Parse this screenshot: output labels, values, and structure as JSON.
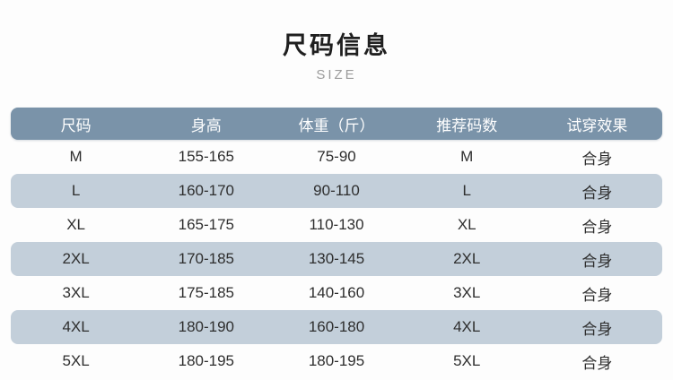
{
  "page": {
    "title": "尺码信息",
    "subtitle": "SIZE"
  },
  "chart_data": {
    "type": "table",
    "title": "尺码信息",
    "subtitle": "SIZE",
    "columns": [
      "尺码",
      "身高",
      "体重（斤）",
      "推荐码数",
      "试穿效果"
    ],
    "rows": [
      [
        "M",
        "155-165",
        "75-90",
        "M",
        "合身"
      ],
      [
        "L",
        "160-170",
        "90-110",
        "L",
        "合身"
      ],
      [
        "XL",
        "165-175",
        "110-130",
        "XL",
        "合身"
      ],
      [
        "2XL",
        "170-185",
        "130-145",
        "2XL",
        "合身"
      ],
      [
        "3XL",
        "175-185",
        "140-160",
        "3XL",
        "合身"
      ],
      [
        "4XL",
        "180-190",
        "160-180",
        "4XL",
        "合身"
      ],
      [
        "5XL",
        "180-195",
        "180-195",
        "5XL",
        "合身"
      ]
    ],
    "layout_hints": {
      "header_style": "solid slate-blue bar, white text, rounded corners",
      "row_striping": "odd rows white, even rows light blue-gray rounded"
    }
  },
  "colors": {
    "page_bg": "#fdfdfd",
    "header_bg": "#7a93a9",
    "stripe_bg": "#c3cfda",
    "title": "#1f1f1f",
    "subtitle": "#9b9b9b",
    "body_text": "#2e2e2e",
    "header_text": "#ffffff"
  }
}
